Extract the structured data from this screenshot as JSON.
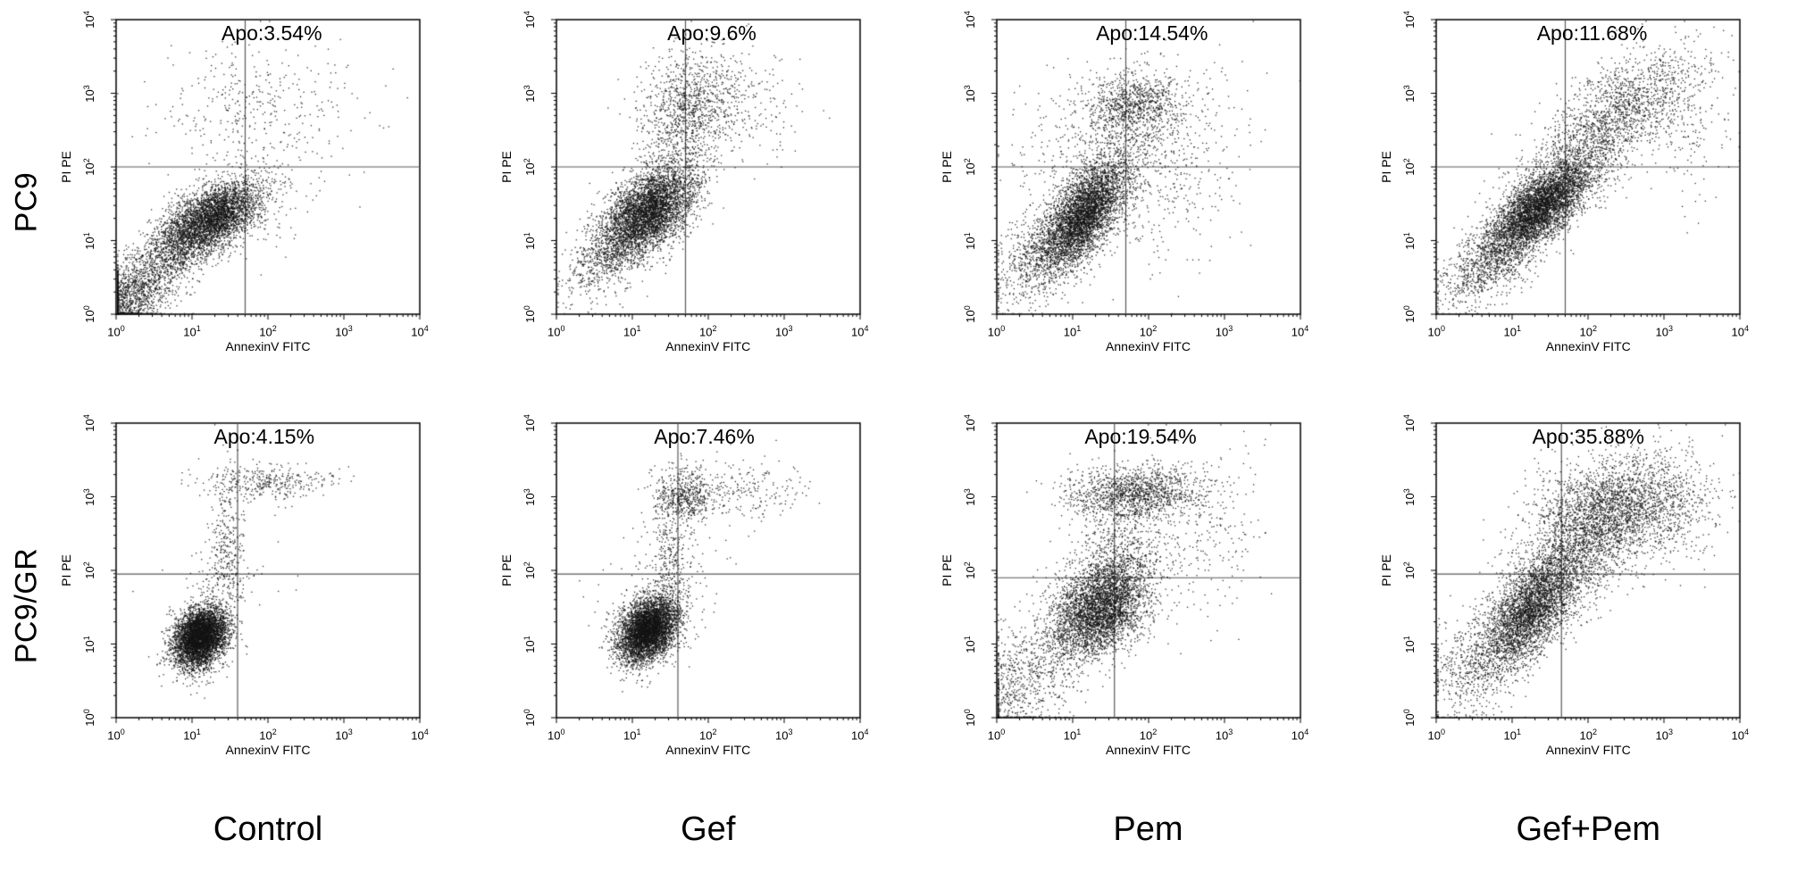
{
  "figure": {
    "rows": [
      "PC9",
      "PC9/GR"
    ],
    "cols": [
      "Control",
      "Gef",
      "Pem",
      "Gef+Pem"
    ],
    "xlabel": "AnnexinV FITC",
    "ylabel": "PI PE",
    "tick_base": "10",
    "tick_exponents": [
      0,
      1,
      2,
      3,
      4
    ],
    "axis_decades": [
      0,
      4
    ],
    "point_color": "#141414",
    "gate_color": "#595959",
    "box_color": "#000000"
  },
  "chart_data": [
    {
      "type": "scatter",
      "row": "PC9",
      "col": "Control",
      "annotation": "Apo:3.54%",
      "xlabel": "AnnexinV FITC",
      "ylabel": "PI PE",
      "xlim_log": [
        0,
        4
      ],
      "ylim_log": [
        0,
        4
      ],
      "gate": {
        "x": 1.7,
        "y": 2.0
      },
      "seed": 101,
      "clusters": [
        {
          "n": 3800,
          "cx": 1.25,
          "cy": 1.3,
          "sx": 0.32,
          "sy": 0.26,
          "r": 0.55
        },
        {
          "n": 1500,
          "cx": 0.15,
          "cy": 0.2,
          "sx": 0.3,
          "sy": 0.3,
          "r": 0.4
        },
        {
          "n": 700,
          "cx": 0.75,
          "cy": 0.85,
          "sx": 0.3,
          "sy": 0.28,
          "r": 0.6
        },
        {
          "n": 230,
          "cx": 1.5,
          "cy": 2.8,
          "sx": 0.5,
          "sy": 0.45,
          "r": 0.1
        },
        {
          "n": 120,
          "cx": 2.4,
          "cy": 2.9,
          "sx": 0.55,
          "sy": 0.4,
          "r": 0.0
        },
        {
          "n": 150,
          "cx": 1.9,
          "cy": 1.6,
          "sx": 0.5,
          "sy": 0.4,
          "r": 0.2
        }
      ]
    },
    {
      "type": "scatter",
      "row": "PC9",
      "col": "Gef",
      "annotation": "Apo:9.6%",
      "xlabel": "AnnexinV FITC",
      "ylabel": "PI PE",
      "xlim_log": [
        0,
        4
      ],
      "ylim_log": [
        0,
        4
      ],
      "gate": {
        "x": 1.7,
        "y": 2.0
      },
      "seed": 202,
      "clusters": [
        {
          "n": 4200,
          "cx": 1.2,
          "cy": 1.4,
          "sx": 0.3,
          "sy": 0.3,
          "r": 0.5
        },
        {
          "n": 700,
          "cx": 0.7,
          "cy": 0.8,
          "sx": 0.32,
          "sy": 0.3,
          "r": 0.55
        },
        {
          "n": 800,
          "cx": 1.65,
          "cy": 2.5,
          "sx": 0.3,
          "sy": 0.5,
          "r": 0.2
        },
        {
          "n": 450,
          "cx": 1.9,
          "cy": 3.0,
          "sx": 0.35,
          "sy": 0.3,
          "r": 0.1
        },
        {
          "n": 150,
          "cx": 2.5,
          "cy": 2.9,
          "sx": 0.4,
          "sy": 0.35,
          "r": 0.0
        }
      ]
    },
    {
      "type": "scatter",
      "row": "PC9",
      "col": "Pem",
      "annotation": "Apo:14.54%",
      "xlabel": "AnnexinV FITC",
      "ylabel": "PI PE",
      "xlim_log": [
        0,
        4
      ],
      "ylim_log": [
        0,
        4
      ],
      "gate": {
        "x": 1.7,
        "y": 2.0
      },
      "seed": 303,
      "clusters": [
        {
          "n": 4200,
          "cx": 1.15,
          "cy": 1.35,
          "sx": 0.28,
          "sy": 0.38,
          "r": 0.65
        },
        {
          "n": 700,
          "cx": 0.55,
          "cy": 0.85,
          "sx": 0.3,
          "sy": 0.35,
          "r": 0.5
        },
        {
          "n": 800,
          "cx": 1.85,
          "cy": 2.85,
          "sx": 0.3,
          "sy": 0.22,
          "r": 0.1
        },
        {
          "n": 700,
          "cx": 1.45,
          "cy": 2.3,
          "sx": 0.55,
          "sy": 0.5,
          "r": 0.15
        },
        {
          "n": 350,
          "cx": 2.3,
          "cy": 2.0,
          "sx": 0.5,
          "sy": 0.7,
          "r": 0.2
        }
      ]
    },
    {
      "type": "scatter",
      "row": "PC9",
      "col": "Gef+Pem",
      "annotation": "Apo:11.68%",
      "xlabel": "AnnexinV FITC",
      "ylabel": "PI PE",
      "xlim_log": [
        0,
        4
      ],
      "ylim_log": [
        0,
        4
      ],
      "gate": {
        "x": 1.7,
        "y": 2.0
      },
      "seed": 404,
      "clusters": [
        {
          "n": 4500,
          "cx": 1.35,
          "cy": 1.45,
          "sx": 0.34,
          "sy": 0.32,
          "r": 0.7
        },
        {
          "n": 900,
          "cx": 0.7,
          "cy": 0.7,
          "sx": 0.35,
          "sy": 0.3,
          "r": 0.6
        },
        {
          "n": 1300,
          "cx": 2.1,
          "cy": 2.4,
          "sx": 0.45,
          "sy": 0.45,
          "r": 0.6
        },
        {
          "n": 600,
          "cx": 2.7,
          "cy": 3.0,
          "sx": 0.4,
          "sy": 0.32,
          "r": 0.3
        },
        {
          "n": 200,
          "cx": 3.2,
          "cy": 2.6,
          "sx": 0.35,
          "sy": 0.5,
          "r": 0.0
        }
      ]
    },
    {
      "type": "scatter",
      "row": "PC9/GR",
      "col": "Control",
      "annotation": "Apo:4.15%",
      "xlabel": "AnnexinV FITC",
      "ylabel": "PI PE",
      "xlim_log": [
        0,
        4
      ],
      "ylim_log": [
        0,
        4
      ],
      "gate": {
        "x": 1.6,
        "y": 1.95
      },
      "seed": 505,
      "clusters": [
        {
          "n": 5000,
          "cx": 1.1,
          "cy": 1.1,
          "sx": 0.17,
          "sy": 0.2,
          "r": 0.25
        },
        {
          "n": 350,
          "cx": 1.45,
          "cy": 2.3,
          "sx": 0.12,
          "sy": 0.55,
          "r": 0.0
        },
        {
          "n": 350,
          "cx": 2.0,
          "cy": 3.2,
          "sx": 0.42,
          "sy": 0.12,
          "r": 0.0
        },
        {
          "n": 100,
          "cx": 1.3,
          "cy": 1.7,
          "sx": 0.35,
          "sy": 0.35,
          "r": 0.2
        }
      ]
    },
    {
      "type": "scatter",
      "row": "PC9/GR",
      "col": "Gef",
      "annotation": "Apo:7.46%",
      "xlabel": "AnnexinV FITC",
      "ylabel": "PI PE",
      "xlim_log": [
        0,
        4
      ],
      "ylim_log": [
        0,
        4
      ],
      "gate": {
        "x": 1.6,
        "y": 1.95
      },
      "seed": 606,
      "clusters": [
        {
          "n": 4800,
          "cx": 1.2,
          "cy": 1.2,
          "sx": 0.19,
          "sy": 0.22,
          "r": 0.3
        },
        {
          "n": 350,
          "cx": 1.5,
          "cy": 2.2,
          "sx": 0.13,
          "sy": 0.5,
          "r": 0.0
        },
        {
          "n": 500,
          "cx": 1.68,
          "cy": 3.02,
          "sx": 0.2,
          "sy": 0.17,
          "r": 0.0
        },
        {
          "n": 220,
          "cx": 2.5,
          "cy": 3.1,
          "sx": 0.45,
          "sy": 0.2,
          "r": 0.0
        },
        {
          "n": 130,
          "cx": 1.4,
          "cy": 1.8,
          "sx": 0.4,
          "sy": 0.4,
          "r": 0.2
        }
      ]
    },
    {
      "type": "scatter",
      "row": "PC9/GR",
      "col": "Pem",
      "annotation": "Apo:19.54%",
      "xlabel": "AnnexinV FITC",
      "ylabel": "PI PE",
      "xlim_log": [
        0,
        4
      ],
      "ylim_log": [
        0,
        4
      ],
      "gate": {
        "x": 1.55,
        "y": 1.9
      },
      "seed": 707,
      "clusters": [
        {
          "n": 3800,
          "cx": 1.35,
          "cy": 1.5,
          "sx": 0.3,
          "sy": 0.33,
          "r": 0.35
        },
        {
          "n": 1300,
          "cx": 1.8,
          "cy": 3.05,
          "sx": 0.45,
          "sy": 0.18,
          "r": 0.1
        },
        {
          "n": 550,
          "cx": 1.6,
          "cy": 2.3,
          "sx": 0.3,
          "sy": 0.45,
          "r": 0.1
        },
        {
          "n": 800,
          "cx": 0.35,
          "cy": 0.5,
          "sx": 0.38,
          "sy": 0.45,
          "r": 0.35
        },
        {
          "n": 300,
          "cx": 2.6,
          "cy": 2.5,
          "sx": 0.45,
          "sy": 0.6,
          "r": 0.2
        }
      ]
    },
    {
      "type": "scatter",
      "row": "PC9/GR",
      "col": "Gef+Pem",
      "annotation": "Apo:35.88%",
      "xlabel": "AnnexinV FITC",
      "ylabel": "PI PE",
      "xlim_log": [
        0,
        4
      ],
      "ylim_log": [
        0,
        4
      ],
      "gate": {
        "x": 1.65,
        "y": 1.95
      },
      "seed": 808,
      "clusters": [
        {
          "n": 3200,
          "cx": 1.25,
          "cy": 1.5,
          "sx": 0.32,
          "sy": 0.4,
          "r": 0.65
        },
        {
          "n": 2600,
          "cx": 2.3,
          "cy": 2.8,
          "sx": 0.5,
          "sy": 0.38,
          "r": 0.25
        },
        {
          "n": 900,
          "cx": 1.75,
          "cy": 2.1,
          "sx": 0.4,
          "sy": 0.45,
          "r": 0.5
        },
        {
          "n": 800,
          "cx": 0.65,
          "cy": 0.85,
          "sx": 0.4,
          "sy": 0.45,
          "r": 0.5
        },
        {
          "n": 250,
          "cx": 3.2,
          "cy": 2.9,
          "sx": 0.3,
          "sy": 0.35,
          "r": 0.0
        }
      ]
    }
  ]
}
